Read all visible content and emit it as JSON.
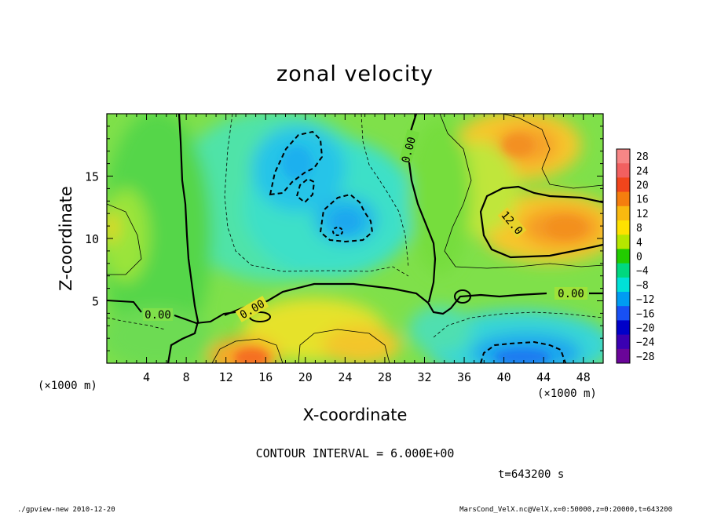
{
  "chart_data": {
    "type": "heatmap",
    "title": "zonal velocity",
    "xlabel": "X-coordinate",
    "ylabel": "Z-coordinate",
    "x_unit_label": "(×1000 m)",
    "y_unit_label": "(×1000 m)",
    "xlim": [
      0,
      50
    ],
    "ylim": [
      0,
      20
    ],
    "x_ticks": [
      4,
      8,
      12,
      16,
      20,
      24,
      28,
      32,
      36,
      40,
      44,
      48
    ],
    "y_ticks": [
      5,
      10,
      15
    ],
    "colorbar": {
      "labels": [
        "28",
        "24",
        "20",
        "16",
        "12",
        "8",
        "4",
        "0",
        "-4",
        "-8",
        "-12",
        "-16",
        "-20",
        "-24",
        "-28"
      ],
      "colors": [
        "#f78686",
        "#f26060",
        "#f1451c",
        "#f57e0e",
        "#f9b90f",
        "#fee100",
        "#b6e600",
        "#22cc00",
        "#00d87f",
        "#00e1d8",
        "#009cf2",
        "#1850f4",
        "#0000c8",
        "#3a00b2",
        "#6a0599"
      ]
    },
    "contour_interval_text": "CONTOUR INTERVAL = 6.000E+00",
    "contour_labels": [
      "0.00",
      "0.00",
      "0.00",
      "0.00",
      "12.0"
    ],
    "time_text": "t=643200 s"
  },
  "footer": {
    "left": "./gpview-new  2010-12-20",
    "right": "MarsCond_VelX.nc@VelX,x=0:50000,z=0:20000,t=643200"
  }
}
